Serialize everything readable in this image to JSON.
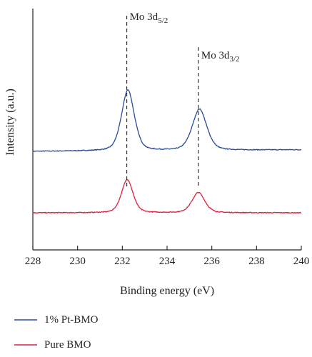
{
  "chart_data": {
    "type": "line",
    "xlabel": "Binding energy (eV)",
    "ylabel": "Intensity (a.u.)",
    "xlim": [
      228,
      240
    ],
    "x_ticks": [
      228,
      230,
      232,
      234,
      236,
      238,
      240
    ],
    "x_tick_labels": [
      "228",
      "230",
      "232",
      "234",
      "236",
      "238",
      "240"
    ],
    "y_ticks": false,
    "grid": false,
    "legend_position": "bottom-left",
    "annotations": [
      {
        "base": "Mo 3d",
        "sub": "5/2",
        "x": 232.2
      },
      {
        "base": "Mo 3d",
        "sub": "3/2",
        "x": 235.4
      }
    ],
    "series": [
      {
        "name": "1% Pt-BMO",
        "color": "#2b4b9b",
        "baseline": 0.47,
        "baseline_slope": 0.012,
        "peaks": [
          {
            "center": 232.25,
            "height": 0.465,
            "width": 0.3
          },
          {
            "center": 235.45,
            "height": 0.315,
            "width": 0.34
          }
        ]
      },
      {
        "name": "Pure BMO",
        "color": "#e0203a",
        "baseline": 0.0,
        "baseline_slope": 0.0,
        "peaks": [
          {
            "center": 232.22,
            "height": 0.255,
            "width": 0.27
          },
          {
            "center": 235.4,
            "height": 0.155,
            "width": 0.3
          }
        ]
      }
    ]
  }
}
